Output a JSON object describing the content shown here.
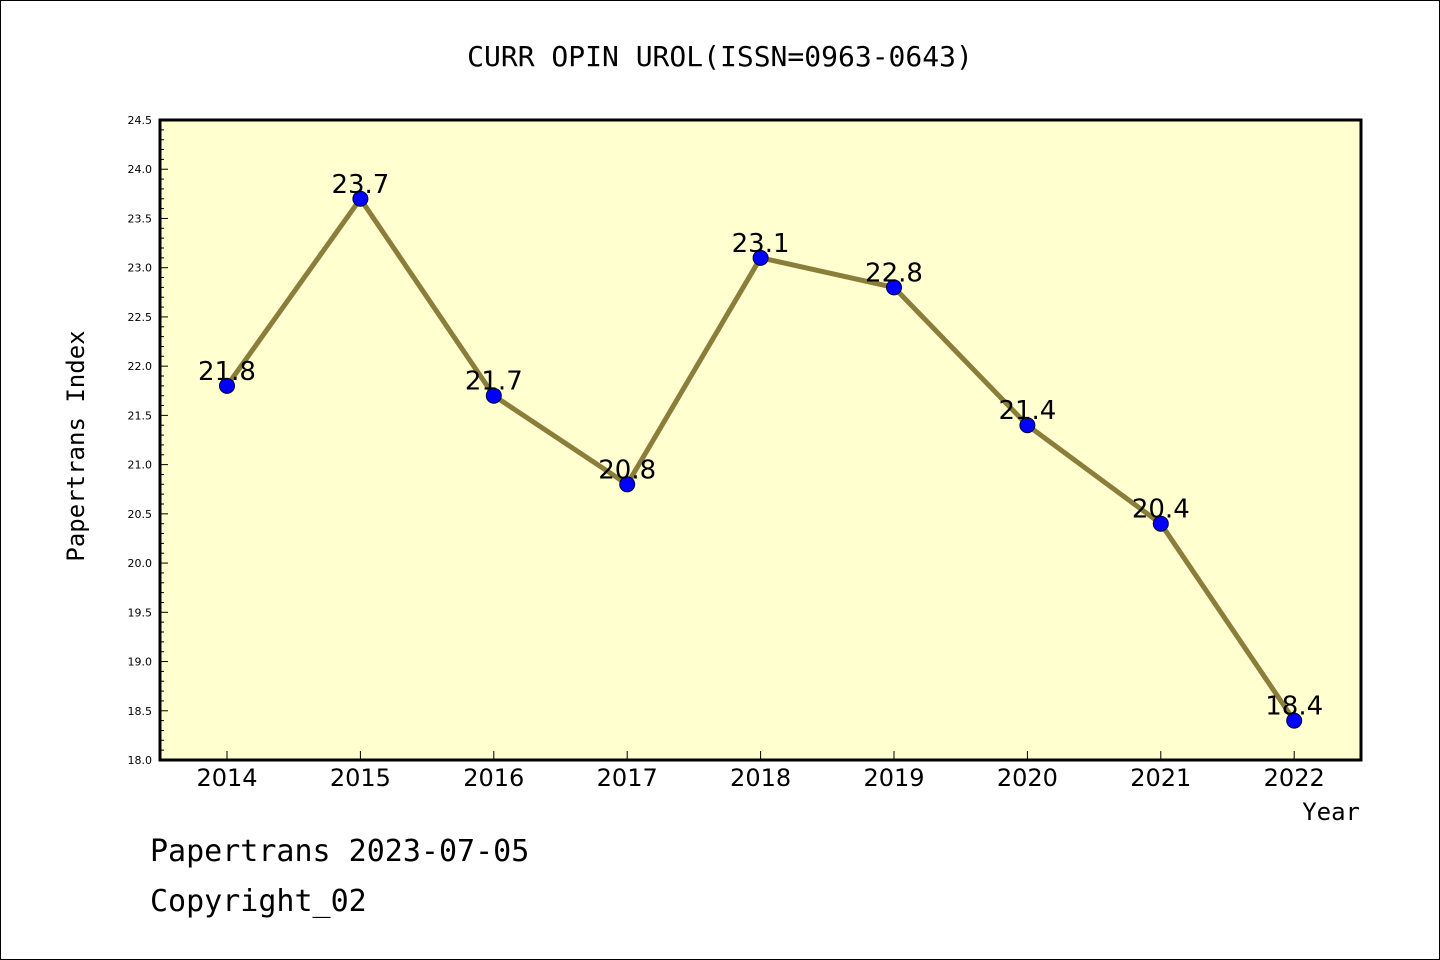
{
  "chart_data": {
    "type": "line",
    "title": "CURR OPIN UROL(ISSN=0963-0643)",
    "xlabel": "Year",
    "ylabel": "Papertrans Index",
    "x": [
      "2014",
      "2015",
      "2016",
      "2017",
      "2018",
      "2019",
      "2020",
      "2021",
      "2022"
    ],
    "series": [
      {
        "values": [
          21.8,
          23.7,
          21.7,
          20.8,
          23.1,
          22.8,
          21.4,
          20.4,
          18.4
        ]
      }
    ],
    "data_labels": [
      "21.8",
      "23.7",
      "21.7",
      "20.8",
      "23.1",
      "22.8",
      "21.4",
      "20.4",
      "18.4"
    ],
    "ylim": [
      18.0,
      24.5
    ],
    "yticks": [
      "18.0",
      "18.5",
      "19.0",
      "19.5",
      "20.0",
      "20.5",
      "21.0",
      "21.5",
      "22.0",
      "22.5",
      "23.0",
      "23.5",
      "24.0",
      "24.5"
    ],
    "grid": false,
    "colors": {
      "plot_bg": "#ffffd0",
      "line": "#8b7d3a",
      "marker": "#0000ff"
    }
  },
  "footer": {
    "line1": "Papertrans 2023-07-05",
    "line2": "Copyright_02"
  }
}
